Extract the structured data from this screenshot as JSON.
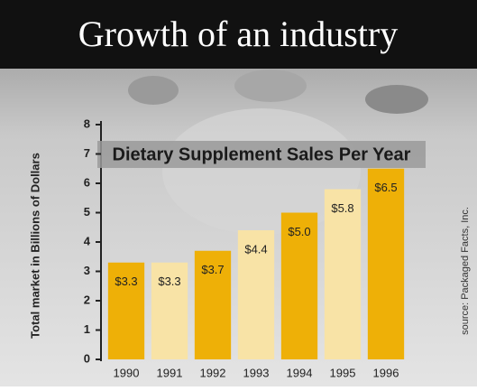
{
  "chart_data": {
    "type": "bar",
    "title": "Growth of an industry",
    "subtitle": "Dietary Supplement Sales Per Year",
    "y_label": "Total market in Billions of Dollars",
    "source": "source: Packaged Facts, Inc.",
    "categories": [
      "1990",
      "1991",
      "1992",
      "1993",
      "1994",
      "1995",
      "1996"
    ],
    "values": [
      3.3,
      3.3,
      3.7,
      4.4,
      5.0,
      5.8,
      6.5
    ],
    "value_labels": [
      "$3.3",
      "$3.3",
      "$3.7",
      "$4.4",
      "$5.0",
      "$5.8",
      "$6.5"
    ],
    "colors": [
      "#eeb007",
      "#f8e3a6",
      "#eeb007",
      "#f8e3a6",
      "#eeb007",
      "#f8e3a6",
      "#eeb007"
    ],
    "ylim": [
      0,
      8
    ],
    "yticks": [
      0,
      1,
      2,
      3,
      4,
      5,
      6,
      7,
      8
    ]
  }
}
